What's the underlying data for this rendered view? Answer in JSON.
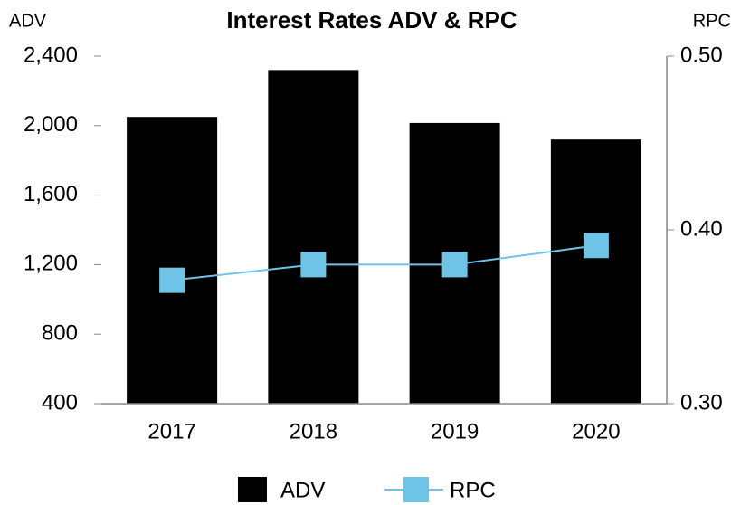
{
  "chart_data": {
    "type": "bar",
    "title": "Interest Rates ADV & RPC",
    "y_label": "ADV",
    "y2_label": "RPC",
    "categories": [
      "2017",
      "2018",
      "2019",
      "2020"
    ],
    "series": [
      {
        "name": "ADV",
        "type": "bar",
        "color": "#000000",
        "values": [
          2050,
          2320,
          2015,
          1920
        ]
      },
      {
        "name": "RPC",
        "type": "line",
        "axis": "y2",
        "color": "#6ec3e6",
        "values": [
          0.371,
          0.38,
          0.38,
          0.391
        ]
      }
    ],
    "ylim": [
      400,
      2400
    ],
    "yticks": [
      400,
      800,
      {
        "value": 1200,
        "label": "1,200"
      },
      {
        "value": 1600,
        "label": "1,600"
      },
      {
        "value": 2000,
        "label": "2,000"
      },
      {
        "value": 2400,
        "label": "2,400"
      }
    ],
    "y2lim": [
      0.3,
      0.5
    ],
    "y2ticks": [
      {
        "value": 0.3,
        "label": "0.30"
      },
      {
        "value": 0.4,
        "label": "0.40"
      },
      {
        "value": 0.5,
        "label": "0.50"
      }
    ],
    "legend": "bottom"
  }
}
